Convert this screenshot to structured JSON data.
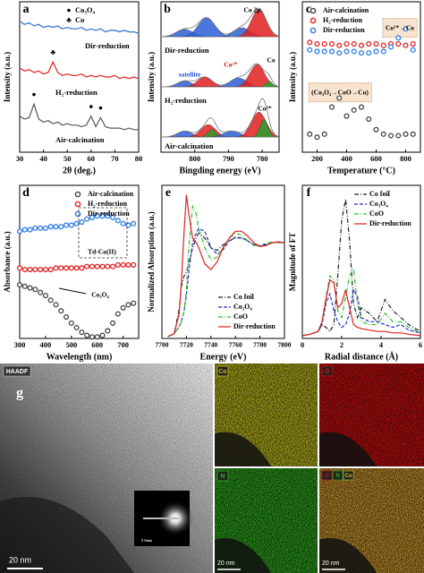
{
  "chart_data": [
    {
      "type": "line",
      "label": "a",
      "xlabel": "2θ (deg.)",
      "ylabel": "Intensity (a.u.)",
      "xlim": [
        30,
        80
      ],
      "xticks": [
        30,
        40,
        50,
        60,
        70,
        80
      ],
      "ylim": [
        0,
        1
      ],
      "x": [
        30,
        32,
        34,
        36,
        38,
        40,
        42,
        44,
        46,
        48,
        50,
        52,
        54,
        56,
        58,
        60,
        62,
        64,
        66,
        68,
        70,
        72,
        74,
        76,
        78,
        80
      ],
      "series": [
        {
          "name": "Dir-reduction",
          "color": "#2b6fd6",
          "values": [
            0.87,
            0.85,
            0.86,
            0.84,
            0.85,
            0.83,
            0.84,
            0.83,
            0.84,
            0.82,
            0.83,
            0.82,
            0.82,
            0.83,
            0.81,
            0.82,
            0.81,
            0.82,
            0.8,
            0.81,
            0.81,
            0.8,
            0.81,
            0.8,
            0.8,
            0.79
          ]
        },
        {
          "name": "H₂-reduction",
          "color": "#e02020",
          "values": [
            0.56,
            0.54,
            0.55,
            0.53,
            0.54,
            0.52,
            0.53,
            0.6,
            0.53,
            0.51,
            0.52,
            0.51,
            0.51,
            0.52,
            0.5,
            0.51,
            0.5,
            0.51,
            0.5,
            0.5,
            0.51,
            0.49,
            0.5,
            0.49,
            0.5,
            0.49
          ]
        },
        {
          "name": "Air-calcination",
          "color": "#555555",
          "values": [
            0.24,
            0.22,
            0.23,
            0.32,
            0.22,
            0.2,
            0.21,
            0.19,
            0.2,
            0.18,
            0.19,
            0.18,
            0.18,
            0.17,
            0.18,
            0.24,
            0.17,
            0.23,
            0.17,
            0.16,
            0.16,
            0.16,
            0.15,
            0.16,
            0.15,
            0.15
          ]
        }
      ],
      "symbols": [
        {
          "symbol": "●",
          "label": "Co₃O₄"
        },
        {
          "symbol": "♣",
          "label": "Co"
        }
      ],
      "peak_marks": [
        {
          "symbol": "●",
          "x": 36,
          "y": 0.38
        },
        {
          "symbol": "♣",
          "x": 44,
          "y": 0.66
        },
        {
          "symbol": "●",
          "x": 60,
          "y": 0.3
        },
        {
          "symbol": "●",
          "x": 64,
          "y": 0.29
        }
      ]
    },
    {
      "type": "peaks",
      "label": "b",
      "xlabel": "Bingding energy (eV)",
      "ylabel": "Intensity (a.u.)",
      "xlim": [
        810,
        775
      ],
      "xticks": [
        800,
        790,
        780
      ],
      "ylim": [
        0,
        3
      ],
      "series": [
        {
          "name": "Dir-reduction",
          "baseline": 2.3,
          "peaks": [
            {
              "center": 803,
              "height": 0.15,
              "width": 2.5,
              "color": "#2b5fd6"
            },
            {
              "center": 796.5,
              "height": 0.38,
              "width": 2.5,
              "color": "#2b5fd6"
            },
            {
              "center": 786,
              "height": 0.18,
              "width": 2.5,
              "color": "#2b5fd6"
            },
            {
              "center": 781,
              "height": 0.55,
              "width": 2.2,
              "color": "#e02020"
            }
          ]
        },
        {
          "name": "H₂-reduction",
          "baseline": 1.3,
          "peaks": [
            {
              "center": 803,
              "height": 0.12,
              "width": 2.2,
              "color": "#2b5fd6"
            },
            {
              "center": 797,
              "height": 0.2,
              "width": 2.2,
              "color": "#e02020"
            },
            {
              "center": 787,
              "height": 0.18,
              "width": 2.5,
              "color": "#2b5fd6"
            },
            {
              "center": 781.5,
              "height": 0.45,
              "width": 2.2,
              "color": "#e02020"
            },
            {
              "center": 778,
              "height": 0.12,
              "width": 1,
              "color": "#2ca02c"
            }
          ]
        },
        {
          "name": "Air-calcination",
          "baseline": 0.3,
          "peaks": [
            {
              "center": 803,
              "height": 0.12,
              "width": 2.2,
              "color": "#2b5fd6"
            },
            {
              "center": 796,
              "height": 0.25,
              "width": 2.2,
              "color": "#e02020"
            },
            {
              "center": 795,
              "height": 0.15,
              "width": 1.2,
              "color": "#2ca02c"
            },
            {
              "center": 789,
              "height": 0.12,
              "width": 2.5,
              "color": "#2b5fd6"
            },
            {
              "center": 781,
              "height": 0.5,
              "width": 2.2,
              "color": "#e02020"
            },
            {
              "center": 779.5,
              "height": 0.35,
              "width": 1.2,
              "color": "#2ca02c"
            }
          ]
        }
      ],
      "annotations": [
        "Co 2p",
        "satellite",
        "Co²⁺",
        "Co",
        "Co³⁺"
      ]
    },
    {
      "type": "line",
      "label": "c",
      "xlabel": "Temperature (°C)",
      "ylabel": "Intensity (a.u.)",
      "xlim": [
        100,
        900
      ],
      "xticks": [
        200,
        400,
        600,
        800
      ],
      "ylim": [
        0,
        1
      ],
      "legend": "upper left",
      "x": [
        150,
        200,
        250,
        300,
        350,
        400,
        450,
        500,
        550,
        600,
        650,
        700,
        750,
        800,
        850
      ],
      "series": [
        {
          "name": "Air-calcination",
          "color": "#444444",
          "marker": "circle-open",
          "values": [
            0.12,
            0.1,
            0.12,
            0.3,
            0.36,
            0.24,
            0.28,
            0.3,
            0.22,
            0.15,
            0.12,
            0.11,
            0.11,
            0.12,
            0.12
          ]
        },
        {
          "name": "H₂-reduction",
          "color": "#e02020",
          "marker": "circle-open",
          "values": [
            0.73,
            0.72,
            0.72,
            0.72,
            0.71,
            0.72,
            0.72,
            0.71,
            0.72,
            0.72,
            0.71,
            0.72,
            0.72,
            0.71,
            0.72
          ]
        },
        {
          "name": "Dir-reduction",
          "color": "#2a7ae2",
          "marker": "circle-open",
          "values": [
            0.68,
            0.67,
            0.67,
            0.67,
            0.66,
            0.67,
            0.67,
            0.66,
            0.66,
            0.67,
            0.67,
            0.7,
            0.76,
            0.82,
            0.68
          ]
        }
      ],
      "annotations": [
        "Co³⁺→Co",
        "(Co₃O₄→CoO→Co)"
      ]
    },
    {
      "type": "line",
      "label": "d",
      "xlabel": "Wavelength (nm)",
      "ylabel": "Absorbance (a.u.)",
      "xlim": [
        300,
        760
      ],
      "xticks": [
        300,
        400,
        500,
        600,
        700
      ],
      "ylim": [
        0,
        1
      ],
      "legend": "upper right",
      "x": [
        300,
        320,
        340,
        360,
        380,
        400,
        420,
        440,
        460,
        480,
        500,
        520,
        540,
        560,
        580,
        600,
        620,
        640,
        660,
        680,
        700,
        720,
        740
      ],
      "series": [
        {
          "name": "Air-calcination",
          "color": "#444444",
          "marker": "circle-open",
          "values": [
            0.35,
            0.34,
            0.33,
            0.32,
            0.3,
            0.28,
            0.25,
            0.22,
            0.18,
            0.14,
            0.1,
            0.07,
            0.04,
            0.02,
            0.01,
            0.01,
            0.02,
            0.05,
            0.1,
            0.16,
            0.2,
            0.22,
            0.23
          ]
        },
        {
          "name": "H₂-reduction",
          "color": "#e02020",
          "marker": "circle-open",
          "values": [
            0.46,
            0.45,
            0.45,
            0.45,
            0.45,
            0.45,
            0.45,
            0.46,
            0.46,
            0.46,
            0.46,
            0.46,
            0.46,
            0.47,
            0.47,
            0.47,
            0.47,
            0.47,
            0.47,
            0.48,
            0.48,
            0.48,
            0.48
          ]
        },
        {
          "name": "Dir-reduction",
          "color": "#2a7ae2",
          "marker": "circle-open",
          "values": [
            0.7,
            0.71,
            0.71,
            0.72,
            0.72,
            0.72,
            0.73,
            0.73,
            0.73,
            0.74,
            0.74,
            0.75,
            0.76,
            0.78,
            0.79,
            0.8,
            0.8,
            0.8,
            0.79,
            0.77,
            0.75,
            0.74,
            0.75
          ]
        }
      ],
      "annotations": [
        "Td-Co(II)",
        "Co₃O₄"
      ]
    },
    {
      "type": "line",
      "label": "e",
      "xlabel": "Energy (eV)",
      "ylabel": "Normalized Absorption (a.u.)",
      "xlim": [
        7700,
        7800
      ],
      "xticks": [
        7700,
        7720,
        7740,
        7760,
        7780,
        7800
      ],
      "ylim": [
        0,
        1.6
      ],
      "legend": "lower right",
      "x": [
        7705,
        7710,
        7714,
        7716,
        7718,
        7720,
        7722,
        7725,
        7728,
        7730,
        7735,
        7740,
        7745,
        7750,
        7755,
        7760,
        7765,
        7770,
        7775,
        7780,
        7785,
        7790,
        7795,
        7800
      ],
      "series": [
        {
          "name": "Co foil",
          "color": "#222222",
          "dash": "dashdot",
          "values": [
            0.02,
            0.05,
            0.3,
            0.55,
            0.65,
            0.7,
            0.78,
            0.95,
            1.05,
            1.1,
            1.05,
            0.95,
            0.92,
            0.98,
            1.02,
            1.05,
            1.05,
            1.02,
            0.98,
            0.97,
            0.98,
            1.0,
            1.01,
            1.0
          ]
        },
        {
          "name": "Co₃O₄",
          "color": "#2233cc",
          "dash": "dashed",
          "values": [
            0.02,
            0.05,
            0.12,
            0.18,
            0.28,
            0.45,
            0.7,
            1.0,
            1.1,
            1.15,
            1.12,
            0.95,
            0.88,
            0.93,
            1.02,
            1.06,
            1.05,
            1.02,
            0.98,
            0.97,
            0.99,
            1.0,
            1.01,
            1.0
          ]
        },
        {
          "name": "CoO",
          "color": "#33bb33",
          "dash": "dashdot",
          "values": [
            0.02,
            0.05,
            0.12,
            0.18,
            0.28,
            0.5,
            0.95,
            1.38,
            1.3,
            1.15,
            0.95,
            0.82,
            0.85,
            0.95,
            1.05,
            1.1,
            1.08,
            1.02,
            0.97,
            0.96,
            0.99,
            1.01,
            1.0,
            1.0
          ]
        },
        {
          "name": "Dir-reduction",
          "color": "#e02020",
          "dash": "solid",
          "values": [
            0.02,
            0.05,
            0.25,
            0.6,
            1.1,
            1.5,
            1.3,
            1.05,
            1.0,
            0.95,
            0.78,
            0.72,
            0.8,
            0.95,
            1.05,
            1.12,
            1.12,
            1.07,
            1.0,
            0.96,
            0.97,
            1.0,
            1.01,
            1.0
          ]
        }
      ]
    },
    {
      "type": "line",
      "label": "f",
      "xlabel": "Radial distance (Å)",
      "ylabel": "Magnitude of FT",
      "xlim": [
        0,
        6
      ],
      "xticks": [
        0,
        2,
        4,
        6
      ],
      "ylim": [
        0,
        1.1
      ],
      "legend": "upper right",
      "x": [
        0,
        0.4,
        0.8,
        1.0,
        1.2,
        1.4,
        1.6,
        1.8,
        2.0,
        2.2,
        2.4,
        2.6,
        2.8,
        3.0,
        3.4,
        3.8,
        4.2,
        4.6,
        5.0,
        5.4,
        6.0
      ],
      "series": [
        {
          "name": "Co foil",
          "color": "#222222",
          "dash": "dashdot",
          "values": [
            0.02,
            0.03,
            0.05,
            0.1,
            0.08,
            0.05,
            0.1,
            0.45,
            0.85,
            1.0,
            0.7,
            0.25,
            0.15,
            0.22,
            0.18,
            0.12,
            0.28,
            0.2,
            0.15,
            0.1,
            0.05
          ]
        },
        {
          "name": "Co₃O₄",
          "color": "#2233cc",
          "dash": "dashed",
          "values": [
            0.02,
            0.03,
            0.05,
            0.1,
            0.25,
            0.32,
            0.2,
            0.12,
            0.08,
            0.1,
            0.18,
            0.35,
            0.3,
            0.15,
            0.12,
            0.12,
            0.1,
            0.08,
            0.1,
            0.06,
            0.04
          ]
        },
        {
          "name": "CoO",
          "color": "#33bb33",
          "dash": "dashdot",
          "values": [
            0.02,
            0.03,
            0.05,
            0.12,
            0.3,
            0.45,
            0.42,
            0.2,
            0.15,
            0.3,
            0.45,
            0.5,
            0.25,
            0.12,
            0.1,
            0.1,
            0.18,
            0.12,
            0.12,
            0.08,
            0.04
          ]
        },
        {
          "name": "Dir-reduction",
          "color": "#e02020",
          "dash": "solid",
          "values": [
            0.02,
            0.03,
            0.05,
            0.12,
            0.28,
            0.42,
            0.4,
            0.22,
            0.25,
            0.35,
            0.22,
            0.1,
            0.08,
            0.07,
            0.06,
            0.05,
            0.05,
            0.04,
            0.04,
            0.03,
            0.02
          ]
        }
      ]
    }
  ],
  "panel_g": {
    "label": "g",
    "haadf": "HAADF",
    "scale_bar": "20 nm",
    "inset_scale": "5 1/nm",
    "maps": [
      {
        "element": "Co",
        "color": "#c8c420"
      },
      {
        "element": "O",
        "color": "#d81010"
      },
      {
        "element": "N",
        "color": "#30b020"
      }
    ],
    "overlay_color": "#d8a030"
  }
}
